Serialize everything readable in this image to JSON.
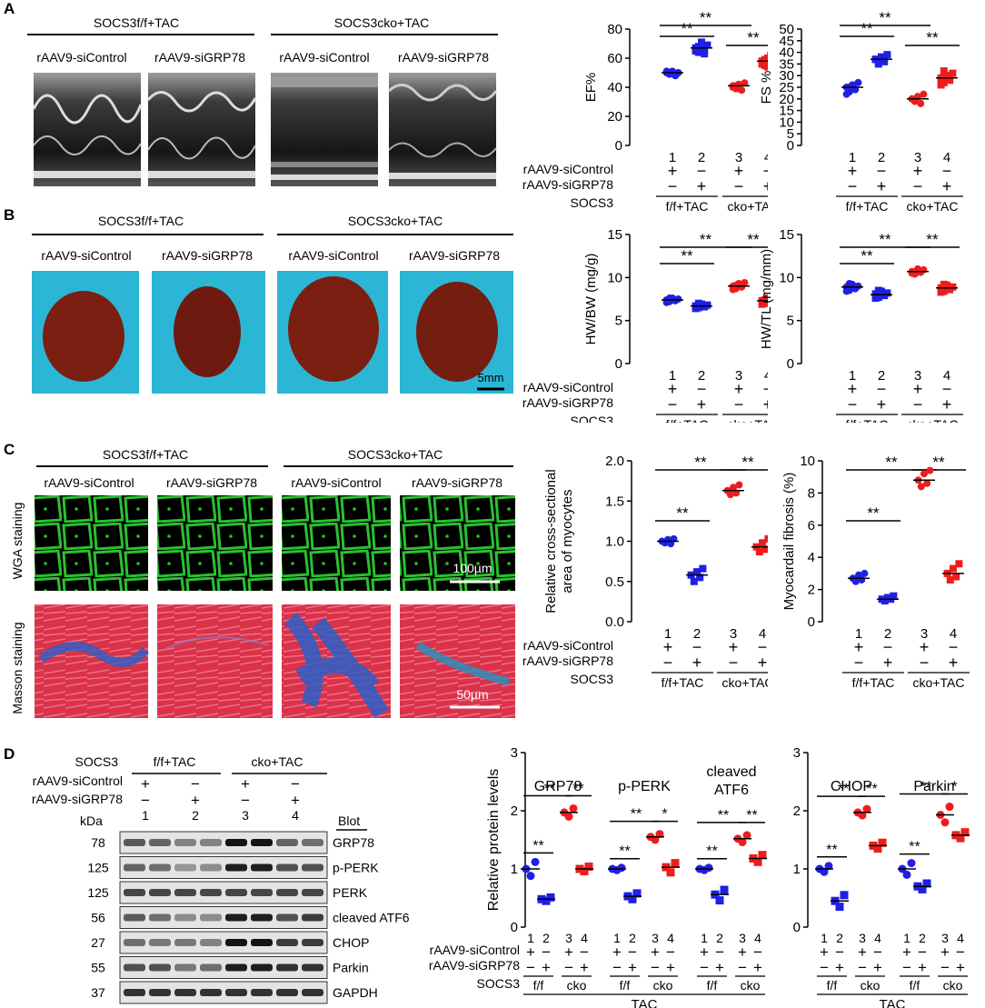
{
  "panels": {
    "A": "A",
    "B": "B",
    "C": "C",
    "D": "D"
  },
  "groups": {
    "ff": "SOCS3f/f+TAC",
    "cko": "SOCS3cko+TAC",
    "ctrl": "rAAV9-siControl",
    "grp": "rAAV9-siGRP78"
  },
  "row_labels": {
    "wga": "WGA staining",
    "masson": "Masson staining"
  },
  "scale_bars": {
    "b": "5mm",
    "wga": "100µm",
    "masson": "50µm"
  },
  "design": {
    "row1": "rAAV9-siControl",
    "row2": "rAAV9-siGRP78",
    "row3": "SOCS3",
    "g1": "f/f+TAC",
    "g2": "cko+TAC",
    "short1": "f/f",
    "short2": "cko",
    "tac": "TAC",
    "plus": "+",
    "minus": "−",
    "nums": [
      "1",
      "2",
      "3",
      "4"
    ]
  },
  "signif": {
    "two": "**",
    "one": "*"
  },
  "colors": {
    "blue": "#1f1fe6",
    "red": "#ee1c1c",
    "wga": "#1f9a1f",
    "masson_bg": "#d9324a",
    "masson_blue": "#2a5fc8",
    "heart_bg": "#2cb6d6",
    "heart": "#7a1f12"
  },
  "blot": {
    "header": {
      "socs3": "SOCS3",
      "g1": "f/f+TAC",
      "g2": "cko+TAC",
      "row1": "rAAV9-siControl",
      "row2": "rAAV9-siGRP78",
      "kda": "kDa",
      "blot": "Blot"
    },
    "bands": [
      {
        "kda": "78",
        "name": "GRP78"
      },
      {
        "kda": "125",
        "name": "p-PERK"
      },
      {
        "kda": "125",
        "name": "PERK"
      },
      {
        "kda": "56",
        "name": "cleaved ATF6"
      },
      {
        "kda": "27",
        "name": "CHOP"
      },
      {
        "kda": "55",
        "name": "Parkin"
      },
      {
        "kda": "37",
        "name": "GAPDH"
      }
    ]
  },
  "chart_data": [
    {
      "id": "ef",
      "type": "scatter",
      "ylabel": "EF%",
      "ylim": [
        0,
        80
      ],
      "yticks": [
        0,
        20,
        40,
        60,
        80
      ],
      "series": [
        {
          "values": [
            [
              50,
              49,
              51,
              48,
              50,
              51,
              49,
              50,
              48,
              50
            ],
            [
              67,
              64,
              70,
              66,
              69,
              65,
              68,
              71,
              63
            ],
            [
              41,
              39,
              42,
              38,
              43,
              40,
              41,
              39
            ],
            [
              58,
              55,
              60,
              57,
              61,
              56,
              59,
              54,
              62
            ]
          ]
        }
      ],
      "means": [
        50,
        67,
        41,
        58
      ]
    },
    {
      "id": "fs",
      "type": "scatter",
      "ylabel": "FS %",
      "ylim": [
        0,
        50
      ],
      "yticks": [
        0,
        5,
        10,
        15,
        20,
        25,
        30,
        35,
        40,
        45,
        50
      ],
      "series": [
        {
          "values": [
            [
              25,
              23,
              26,
              24,
              27,
              22,
              25,
              26,
              24
            ],
            [
              37,
              35,
              38,
              36,
              39,
              37,
              36,
              38
            ],
            [
              20,
              19,
              21,
              18,
              22,
              20,
              19,
              21
            ],
            [
              29,
              27,
              30,
              28,
              31,
              26,
              32,
              29
            ]
          ]
        }
      ],
      "means": [
        25,
        37,
        20,
        29
      ]
    },
    {
      "id": "hwbw",
      "type": "scatter",
      "ylabel": "HW/BW (mg/g)",
      "ylim": [
        0,
        15
      ],
      "yticks": [
        0,
        5,
        10,
        15
      ],
      "series": [
        {
          "values": [
            [
              7.4,
              7.2,
              7.6,
              7.3,
              7.5,
              7.1,
              7.6
            ],
            [
              6.7,
              6.5,
              6.9,
              6.6,
              6.8,
              6.4,
              7.0
            ],
            [
              9.0,
              8.7,
              9.3,
              8.9,
              9.4,
              8.6,
              9.1
            ],
            [
              7.3,
              7.0,
              7.6,
              7.2,
              7.5,
              6.9,
              7.4
            ]
          ]
        }
      ],
      "means": [
        7.4,
        6.7,
        9.0,
        7.3
      ]
    },
    {
      "id": "hwtl",
      "type": "scatter",
      "ylabel": "HW/TL (mg/mm)",
      "ylim": [
        0,
        15
      ],
      "yticks": [
        0,
        5,
        10,
        15
      ],
      "series": [
        {
          "values": [
            [
              8.9,
              8.5,
              9.2,
              8.7,
              9.0,
              8.4,
              9.3
            ],
            [
              8.1,
              7.7,
              8.4,
              7.9,
              8.2,
              7.6,
              8.5
            ],
            [
              10.7,
              10.4,
              11.0,
              10.6,
              10.9,
              10.5
            ],
            [
              8.8,
              8.4,
              9.1,
              8.6,
              8.9,
              8.3,
              9.2
            ]
          ]
        }
      ],
      "means": [
        8.9,
        8.0,
        10.7,
        8.8
      ]
    },
    {
      "id": "csa",
      "type": "scatter",
      "ylabel": "Relative cross-sectional area of myocytes",
      "ylim": [
        0,
        2.0
      ],
      "yticks": [
        0.0,
        0.5,
        1.0,
        1.5,
        2.0
      ],
      "series": [
        {
          "values": [
            [
              1.0,
              0.98,
              1.02,
              0.97,
              1.03
            ],
            [
              0.58,
              0.5,
              0.62,
              0.55,
              0.66
            ],
            [
              1.63,
              1.58,
              1.67,
              1.6,
              1.7
            ],
            [
              0.93,
              0.87,
              0.98,
              0.9,
              1.03
            ]
          ]
        }
      ],
      "means": [
        1.0,
        0.58,
        1.63,
        0.93
      ]
    },
    {
      "id": "fib",
      "type": "scatter",
      "ylabel": "Myocardail fibrosis (%)",
      "ylim": [
        0,
        10
      ],
      "yticks": [
        0,
        2,
        4,
        6,
        8,
        10
      ],
      "series": [
        {
          "values": [
            [
              2.7,
              2.5,
              2.9,
              2.6,
              3.0
            ],
            [
              1.4,
              1.3,
              1.5,
              1.4,
              1.6
            ],
            [
              8.8,
              8.4,
              9.2,
              8.6,
              9.4
            ],
            [
              3.0,
              2.6,
              3.3,
              2.8,
              3.6
            ]
          ]
        }
      ],
      "means": [
        2.7,
        1.4,
        8.8,
        3.0
      ]
    },
    {
      "id": "prot1",
      "type": "scatter",
      "ylabel": "Relative protein levels",
      "ylim": [
        0,
        3
      ],
      "yticks": [
        0,
        1,
        2,
        3
      ],
      "subgroups": [
        {
          "title": "GRP78",
          "values": [
            [
              1.0,
              0.88,
              1.12
            ],
            [
              0.48,
              0.45,
              0.51
            ],
            [
              1.97,
              1.9,
              2.04
            ],
            [
              1.0,
              0.96,
              1.04
            ]
          ]
        },
        {
          "title": "p-PERK",
          "values": [
            [
              1.0,
              0.98,
              1.02
            ],
            [
              0.53,
              0.48,
              0.58
            ],
            [
              1.55,
              1.5,
              1.6
            ],
            [
              1.03,
              0.94,
              1.1
            ]
          ]
        },
        {
          "title": "cleaved ATF6",
          "values": [
            [
              1.0,
              0.98,
              1.02
            ],
            [
              0.56,
              0.46,
              0.64
            ],
            [
              1.52,
              1.46,
              1.58
            ],
            [
              1.18,
              1.12,
              1.24
            ]
          ]
        }
      ]
    },
    {
      "id": "prot2",
      "type": "scatter",
      "ylim": [
        0,
        3
      ],
      "yticks": [
        0,
        1,
        2,
        3
      ],
      "subgroups": [
        {
          "title": "CHOP",
          "values": [
            [
              1.0,
              0.95,
              1.05
            ],
            [
              0.45,
              0.35,
              0.55
            ],
            [
              1.97,
              1.92,
              2.03
            ],
            [
              1.4,
              1.35,
              1.45
            ]
          ]
        },
        {
          "title": "Parkin",
          "values": [
            [
              1.0,
              0.9,
              1.1
            ],
            [
              0.7,
              0.65,
              0.75
            ],
            [
              1.93,
              1.8,
              2.07
            ],
            [
              1.58,
              1.53,
              1.63
            ]
          ]
        }
      ]
    }
  ]
}
